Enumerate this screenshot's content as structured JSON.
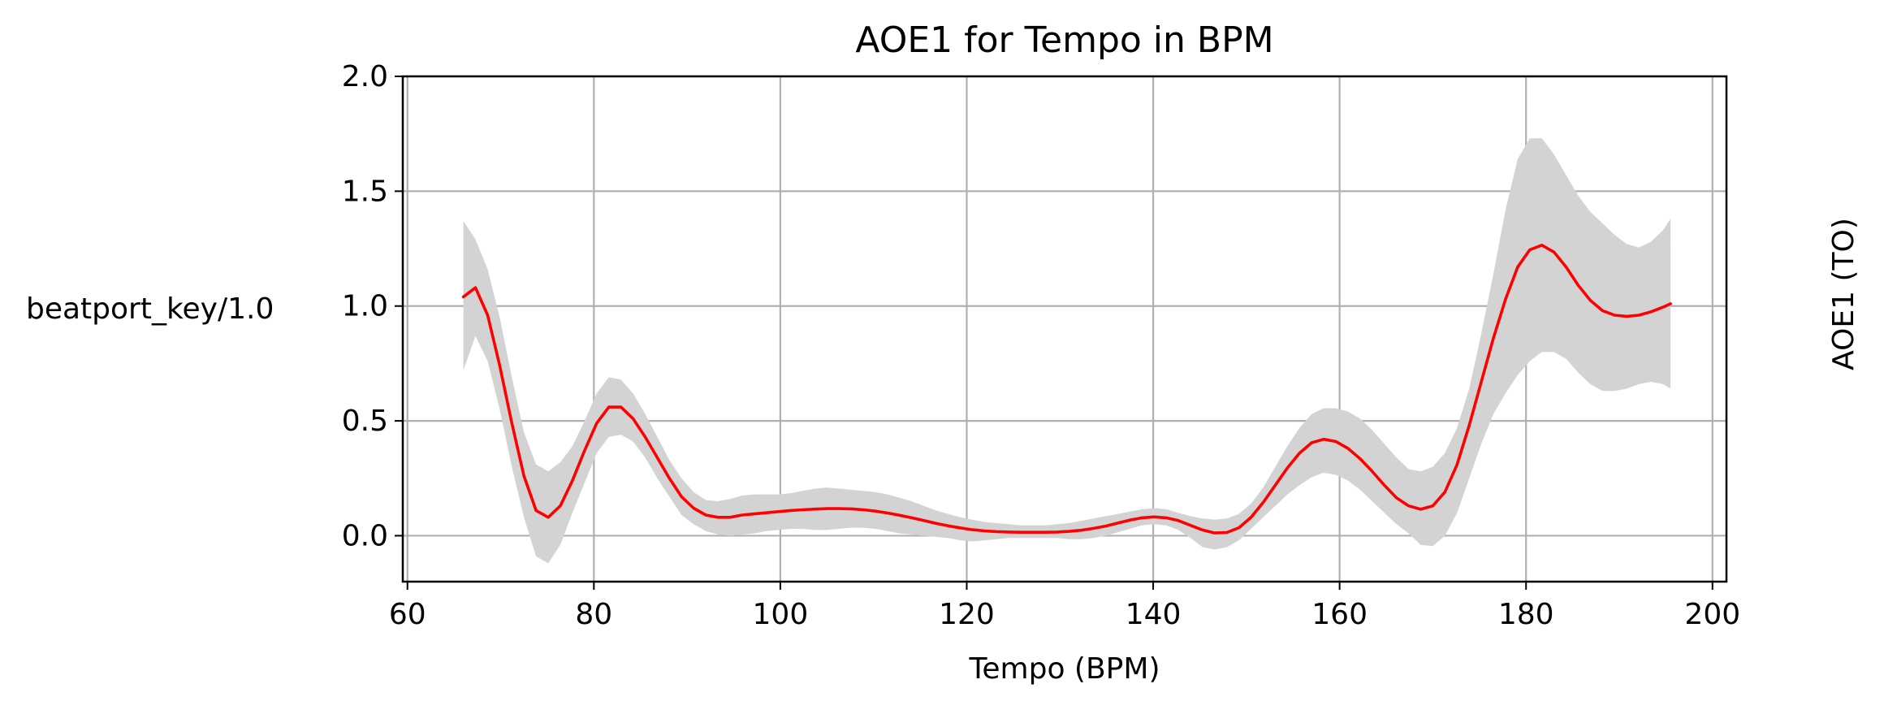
{
  "chart_data": {
    "type": "line",
    "title": "AOE1 for Tempo in BPM",
    "xlabel": "Tempo (BPM)",
    "ylabel_left": "beatport_key/1.0",
    "ylabel_right": "AOE1 (TO)",
    "xlim": [
      59.5,
      201.5
    ],
    "ylim": [
      -0.2,
      2.0
    ],
    "xticks": [
      60,
      80,
      100,
      120,
      140,
      160,
      180,
      200
    ],
    "yticks": [
      0.0,
      0.5,
      1.0,
      1.5,
      2.0
    ],
    "xtick_labels": [
      "60",
      "80",
      "100",
      "120",
      "140",
      "160",
      "180",
      "200"
    ],
    "ytick_labels": [
      "0.0",
      "0.5",
      "1.0",
      "1.5",
      "2.0"
    ],
    "grid": true,
    "colors": {
      "line": "#ff0000",
      "band": "#d3d3d3",
      "grid": "#b0b0b0"
    },
    "series": [
      {
        "type": "line",
        "x": [
          66,
          67.3,
          68.6,
          69.9,
          71.2,
          72.5,
          73.8,
          75.1,
          76.4,
          77.7,
          79,
          80.3,
          81.6,
          82.9,
          84.2,
          85.5,
          86.8,
          88.1,
          89.4,
          90.7,
          92,
          93.3,
          94.6,
          95.9,
          97.2,
          98.5,
          99.8,
          101.1,
          102.4,
          103.7,
          105,
          106.3,
          107.6,
          108.9,
          110.2,
          111.5,
          112.8,
          114.1,
          115.4,
          116.7,
          118,
          119.3,
          120.6,
          121.9,
          123.2,
          124.5,
          125.8,
          127.1,
          128.4,
          129.7,
          131,
          132.3,
          133.6,
          134.9,
          136.2,
          137.5,
          138.8,
          140.1,
          141.4,
          142.7,
          144,
          145.3,
          146.6,
          147.9,
          149.2,
          150.5,
          151.8,
          153.1,
          154.4,
          155.7,
          157,
          158.3,
          159.6,
          160.9,
          162.2,
          163.5,
          164.8,
          166.1,
          167.4,
          168.7,
          170,
          171.3,
          172.6,
          173.9,
          175.2,
          176.5,
          177.8,
          179.1,
          180.4,
          181.7,
          183,
          184.3,
          185.6,
          186.9,
          188.2,
          189.5,
          190.8,
          192.1,
          193.4,
          194.7,
          195.5
        ],
        "y": [
          1.04,
          1.08,
          0.96,
          0.74,
          0.49,
          0.26,
          0.11,
          0.08,
          0.13,
          0.24,
          0.37,
          0.49,
          0.56,
          0.56,
          0.51,
          0.43,
          0.34,
          0.25,
          0.17,
          0.12,
          0.09,
          0.08,
          0.08,
          0.09,
          0.095,
          0.1,
          0.105,
          0.11,
          0.113,
          0.116,
          0.118,
          0.118,
          0.117,
          0.113,
          0.107,
          0.099,
          0.089,
          0.078,
          0.066,
          0.054,
          0.043,
          0.034,
          0.026,
          0.021,
          0.018,
          0.016,
          0.015,
          0.015,
          0.015,
          0.016,
          0.019,
          0.024,
          0.032,
          0.042,
          0.055,
          0.068,
          0.078,
          0.082,
          0.078,
          0.066,
          0.045,
          0.025,
          0.012,
          0.014,
          0.035,
          0.08,
          0.145,
          0.22,
          0.295,
          0.36,
          0.405,
          0.42,
          0.41,
          0.38,
          0.335,
          0.28,
          0.22,
          0.165,
          0.13,
          0.115,
          0.13,
          0.19,
          0.31,
          0.48,
          0.67,
          0.86,
          1.03,
          1.17,
          1.245,
          1.265,
          1.235,
          1.17,
          1.09,
          1.025,
          0.98,
          0.96,
          0.955,
          0.96,
          0.975,
          0.995,
          1.01
        ]
      },
      {
        "type": "band",
        "x": [
          66,
          67.3,
          68.6,
          69.9,
          71.2,
          72.5,
          73.8,
          75.1,
          76.4,
          77.7,
          79,
          80.3,
          81.6,
          82.9,
          84.2,
          85.5,
          86.8,
          88.1,
          89.4,
          90.7,
          92,
          93.3,
          94.6,
          95.9,
          97.2,
          98.5,
          99.8,
          101.1,
          102.4,
          103.7,
          105,
          106.3,
          107.6,
          108.9,
          110.2,
          111.5,
          112.8,
          114.1,
          115.4,
          116.7,
          118,
          119.3,
          120.6,
          121.9,
          123.2,
          124.5,
          125.8,
          127.1,
          128.4,
          129.7,
          131,
          132.3,
          133.6,
          134.9,
          136.2,
          137.5,
          138.8,
          140.1,
          141.4,
          142.7,
          144,
          145.3,
          146.6,
          147.9,
          149.2,
          150.5,
          151.8,
          153.1,
          154.4,
          155.7,
          157,
          158.3,
          159.6,
          160.9,
          162.2,
          163.5,
          164.8,
          166.1,
          167.4,
          168.7,
          170,
          171.3,
          172.6,
          173.9,
          175.2,
          176.5,
          177.8,
          179.1,
          180.4,
          181.7,
          183,
          184.3,
          185.6,
          186.9,
          188.2,
          189.5,
          190.8,
          192.1,
          193.4,
          194.7,
          195.5
        ],
        "lower": [
          0.72,
          0.87,
          0.76,
          0.55,
          0.3,
          0.08,
          -0.09,
          -0.12,
          -0.04,
          0.1,
          0.23,
          0.36,
          0.43,
          0.44,
          0.41,
          0.34,
          0.25,
          0.17,
          0.09,
          0.05,
          0.02,
          0.005,
          0,
          0.005,
          0.01,
          0.02,
          0.025,
          0.03,
          0.03,
          0.025,
          0.025,
          0.03,
          0.035,
          0.035,
          0.03,
          0.02,
          0.01,
          0.005,
          0,
          -0.005,
          -0.01,
          -0.02,
          -0.025,
          -0.02,
          -0.015,
          -0.01,
          -0.01,
          -0.01,
          -0.01,
          -0.01,
          -0.015,
          -0.015,
          -0.01,
          0,
          0.015,
          0.03,
          0.045,
          0.05,
          0.045,
          0.025,
          -0.01,
          -0.05,
          -0.06,
          -0.05,
          -0.02,
          0.03,
          0.08,
          0.13,
          0.18,
          0.22,
          0.255,
          0.275,
          0.265,
          0.24,
          0.2,
          0.15,
          0.1,
          0.05,
          0.01,
          -0.04,
          -0.045,
          0,
          0.1,
          0.25,
          0.4,
          0.53,
          0.62,
          0.7,
          0.76,
          0.8,
          0.8,
          0.77,
          0.71,
          0.66,
          0.63,
          0.63,
          0.64,
          0.66,
          0.67,
          0.66,
          0.64
        ],
        "upper": [
          1.37,
          1.29,
          1.16,
          0.95,
          0.69,
          0.45,
          0.31,
          0.28,
          0.32,
          0.39,
          0.5,
          0.62,
          0.69,
          0.68,
          0.62,
          0.53,
          0.43,
          0.33,
          0.25,
          0.19,
          0.155,
          0.15,
          0.16,
          0.175,
          0.18,
          0.18,
          0.18,
          0.185,
          0.195,
          0.205,
          0.21,
          0.205,
          0.2,
          0.195,
          0.19,
          0.18,
          0.165,
          0.15,
          0.13,
          0.11,
          0.095,
          0.08,
          0.07,
          0.06,
          0.055,
          0.05,
          0.045,
          0.045,
          0.045,
          0.05,
          0.055,
          0.065,
          0.075,
          0.085,
          0.095,
          0.105,
          0.115,
          0.12,
          0.115,
          0.1,
          0.085,
          0.075,
          0.07,
          0.075,
          0.095,
          0.14,
          0.21,
          0.3,
          0.39,
          0.47,
          0.53,
          0.555,
          0.555,
          0.54,
          0.51,
          0.46,
          0.4,
          0.34,
          0.29,
          0.28,
          0.3,
          0.36,
          0.47,
          0.64,
          0.88,
          1.14,
          1.42,
          1.64,
          1.73,
          1.73,
          1.66,
          1.57,
          1.48,
          1.41,
          1.36,
          1.31,
          1.27,
          1.255,
          1.28,
          1.33,
          1.38
        ]
      }
    ]
  }
}
